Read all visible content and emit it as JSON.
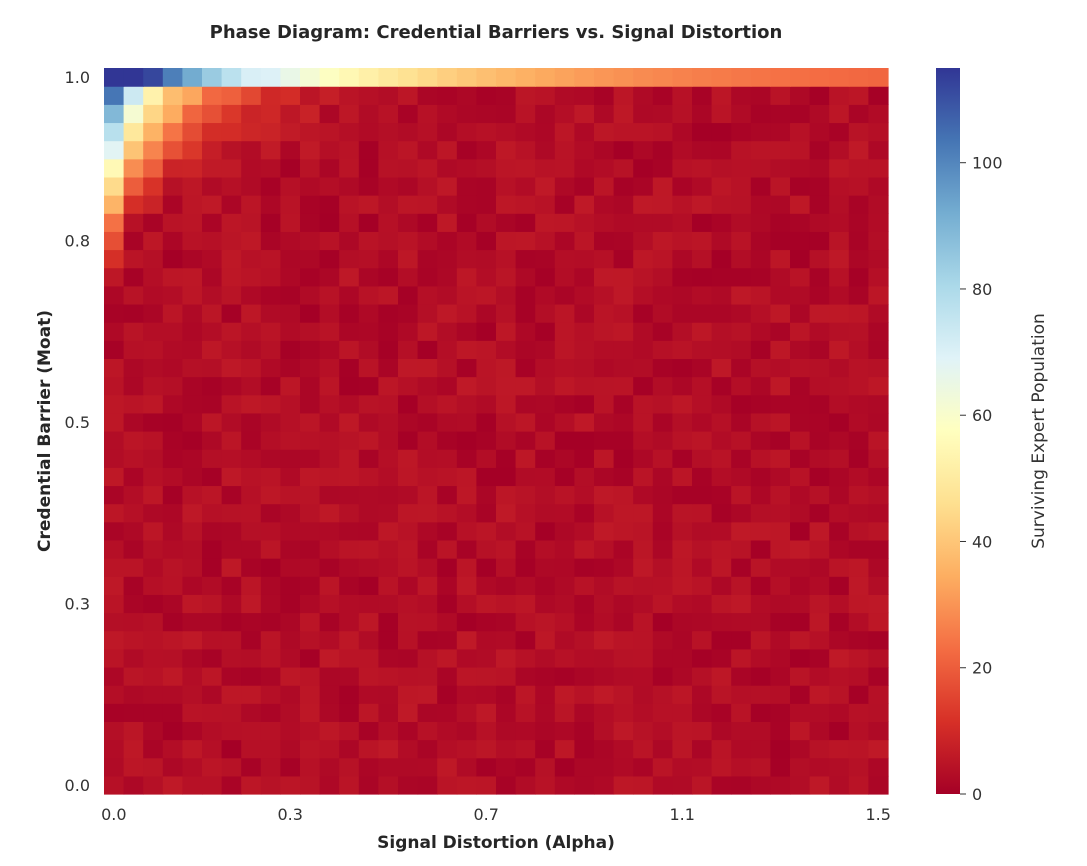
{
  "chart_data": {
    "type": "heatmap",
    "title": "Phase Diagram: Credential Barriers vs. Signal Distortion",
    "xlabel": "Signal Distortion (Alpha)",
    "ylabel": "Credential Barrier (Moat)",
    "colorbar_label": "Surviving Expert Population",
    "x_range": [
      0.0,
      1.5
    ],
    "y_range": [
      0.0,
      1.0
    ],
    "x_tick_labels": [
      "0.0",
      "0.3",
      "0.7",
      "1.1",
      "1.5"
    ],
    "y_tick_labels": [
      "0.0",
      "0.3",
      "0.5",
      "0.8",
      "1.0"
    ],
    "colorbar_ticks": [
      "0",
      "20",
      "40",
      "60",
      "80",
      "100"
    ],
    "colorbar_range": [
      0,
      115
    ],
    "colormap": "RdYlBu",
    "grid_cols": 40,
    "grid_rows": 40,
    "colors": {
      "cmap_stops": [
        "#a50026",
        "#d73027",
        "#f46d43",
        "#fdae61",
        "#fee090",
        "#ffffbf",
        "#e0f3f8",
        "#abd9e9",
        "#74add1",
        "#4575b4",
        "#313695"
      ]
    }
  }
}
